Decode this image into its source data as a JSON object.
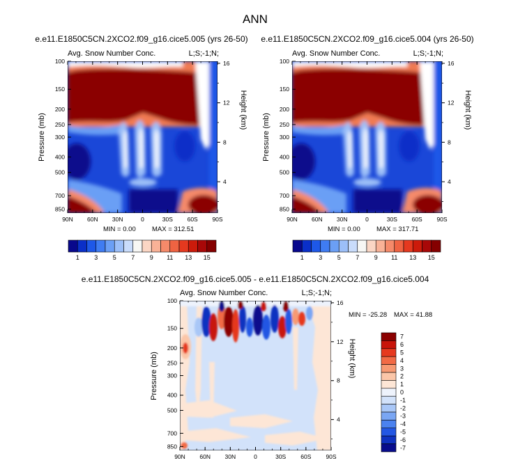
{
  "chart_data": [
    {
      "type": "heatmap",
      "title": "e.e11.E1850C5CN.2XCO2.f09_g16.cice5.005 (yrs 26-50)",
      "subtitle_left": "Avg. Snow Number Conc.",
      "subtitle_right": "L;S;-1;N;",
      "xlabel": "",
      "ylabel": "Pressure (mb)",
      "ylabel_right": "Height (km)",
      "x_ticks": [
        "90N",
        "60N",
        "30N",
        "0",
        "30S",
        "60S",
        "90S"
      ],
      "y_ticks": [
        "100",
        "150",
        "200",
        "250",
        "300",
        "400",
        "500",
        "700",
        "850"
      ],
      "y_right_ticks": [
        "16",
        "12",
        "8",
        "4"
      ],
      "min_text": "MIN =   0.00",
      "max_text": "MAX = 312.51",
      "colorbar_labels": [
        "1",
        "3",
        "5",
        "7",
        "9",
        "11",
        "13",
        "15"
      ],
      "colors": [
        "#08088c",
        "#0a2fc8",
        "#1e58e8",
        "#3f7cf2",
        "#6b9ff5",
        "#9cbff8",
        "#c9dcfb",
        "#f7f7f4",
        "#fbd6c4",
        "#f9b297",
        "#f58a6a",
        "#ef6342",
        "#e5391f",
        "#cc1b0b",
        "#a80808",
        "#850000"
      ]
    },
    {
      "type": "heatmap",
      "title": "e.e11.E1850C5CN.2XCO2.f09_g16.cice5.004 (yrs 26-50)",
      "subtitle_left": "Avg. Snow Number Conc.",
      "subtitle_right": "L;S;-1;N;",
      "xlabel": "",
      "ylabel": "Pressure (mb)",
      "ylabel_right": "Height (km)",
      "x_ticks": [
        "90N",
        "60N",
        "30N",
        "0",
        "30S",
        "60S",
        "90S"
      ],
      "y_ticks": [
        "100",
        "150",
        "200",
        "250",
        "300",
        "400",
        "500",
        "700",
        "850"
      ],
      "y_right_ticks": [
        "16",
        "12",
        "8",
        "4"
      ],
      "min_text": "MIN =   0.00",
      "max_text": "MAX = 317.71",
      "colorbar_labels": [
        "1",
        "3",
        "5",
        "7",
        "9",
        "11",
        "13",
        "15"
      ],
      "colors": [
        "#08088c",
        "#0a2fc8",
        "#1e58e8",
        "#3f7cf2",
        "#6b9ff5",
        "#9cbff8",
        "#c9dcfb",
        "#f7f7f4",
        "#fbd6c4",
        "#f9b297",
        "#f58a6a",
        "#ef6342",
        "#e5391f",
        "#cc1b0b",
        "#a80808",
        "#850000"
      ]
    },
    {
      "type": "heatmap",
      "title": "e.e11.E1850C5CN.2XCO2.f09_g16.cice5.005 - e.e11.E1850C5CN.2XCO2.f09_g16.cice5.004",
      "subtitle_left": "Avg. Snow Number Conc.",
      "subtitle_right": "L;S;-1;N;",
      "xlabel": "",
      "ylabel": "Pressure (mb)",
      "ylabel_right": "Height (km)",
      "x_ticks": [
        "90N",
        "60N",
        "30N",
        "0",
        "30S",
        "60S",
        "90S"
      ],
      "y_ticks": [
        "100",
        "150",
        "200",
        "250",
        "300",
        "400",
        "500",
        "700",
        "850"
      ],
      "y_right_ticks": [
        "16",
        "12",
        "8",
        "4"
      ],
      "min_text": "MIN = -25.28",
      "max_text": "MAX =  41.88",
      "colorbar_labels": [
        "7",
        "6",
        "5",
        "4",
        "3",
        "2",
        "1",
        "0",
        "-1",
        "-2",
        "-3",
        "-4",
        "-5",
        "-6",
        "-7"
      ],
      "colors": [
        "#8b0000",
        "#c8140a",
        "#e6391f",
        "#f26a45",
        "#f79a73",
        "#fbc6a8",
        "#fde6d6",
        "#eef3fc",
        "#d2e2fa",
        "#a9c7f7",
        "#7aa6f3",
        "#4b82ef",
        "#2357e3",
        "#0f32c0",
        "#080c8c"
      ]
    }
  ],
  "figure": {
    "title": "ANN"
  }
}
